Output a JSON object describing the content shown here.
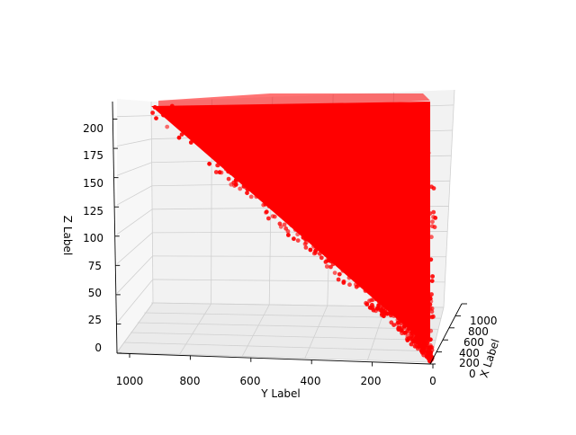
{
  "chart_data": {
    "type": "scatter3d",
    "xlabel": "X Label",
    "ylabel": "Y Label",
    "zlabel": "Z Label",
    "xlim": [
      0,
      1100
    ],
    "ylim": [
      0,
      1050
    ],
    "zlim": [
      0,
      215
    ],
    "x_ticks": [
      "0",
      "200",
      "400",
      "600",
      "800",
      "1000"
    ],
    "y_ticks": [
      "1000",
      "800",
      "600",
      "400",
      "200",
      "0"
    ],
    "z_ticks": [
      "0",
      "25",
      "50",
      "75",
      "100",
      "125",
      "150",
      "175",
      "200"
    ],
    "grid": true,
    "point_color": "#ff0000",
    "pane_colors": {
      "back": "#f2f2f2",
      "floor": "#ebebeb",
      "side": "#f7f7f7"
    },
    "points": {
      "count": 1000,
      "z_range": [
        0,
        210
      ],
      "y_range": [
        0,
        1000
      ],
      "x_range": [
        0,
        1000
      ]
    }
  }
}
